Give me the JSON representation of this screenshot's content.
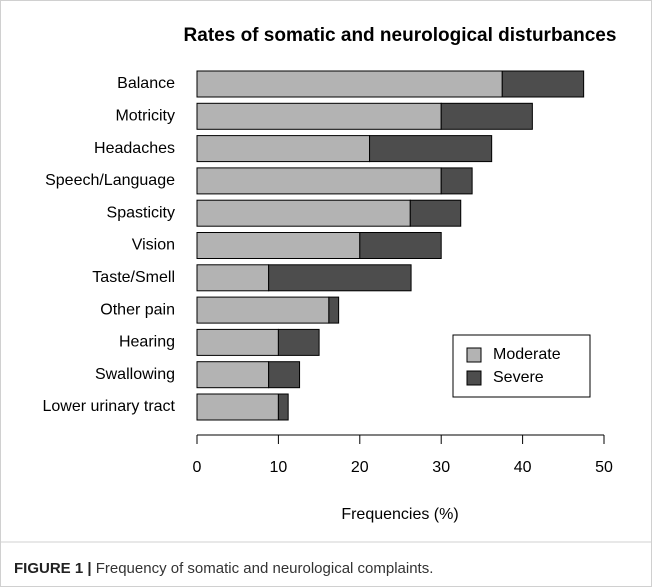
{
  "chart_data": {
    "type": "stacked-bar-horizontal",
    "title": "Rates of somatic and neurological disturbances",
    "x_label": "Frequencies (%)",
    "categories": [
      "Balance",
      "Motricity",
      "Headaches",
      "Speech/Language",
      "Spasticity",
      "Vision",
      "Taste/Smell",
      "Other pain",
      "Hearing",
      "Swallowing",
      "Lower urinary tract"
    ],
    "series": [
      {
        "name": "Moderate",
        "color": "#b3b3b3",
        "values": [
          37.5,
          30,
          21.2,
          30,
          26.2,
          20,
          8.8,
          16.2,
          10,
          8.8,
          10
        ]
      },
      {
        "name": "Severe",
        "color": "#4d4d4d",
        "values": [
          10,
          11.2,
          15,
          3.8,
          6.2,
          10,
          17.5,
          1.2,
          5,
          3.8,
          1.2
        ]
      }
    ],
    "xlim": [
      0,
      50
    ],
    "xticks": [
      0,
      10,
      20,
      30,
      40,
      50
    ],
    "legend_position": "bottom-right",
    "caption_label": "FIGURE 1 |",
    "caption": "Frequency of somatic and neurological complaints."
  }
}
